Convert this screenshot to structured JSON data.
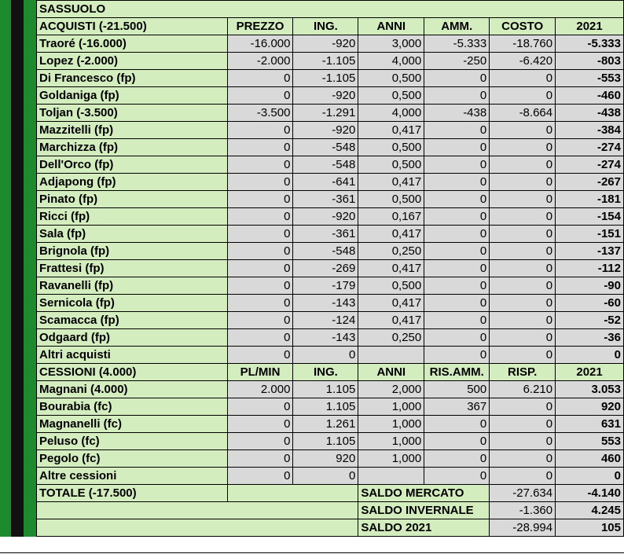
{
  "team": "SASSUOLO",
  "acquisti": {
    "title": "ACQUISTI (-21.500)",
    "headers": [
      "PREZZO",
      "ING.",
      "ANNI",
      "AMM.",
      "COSTO",
      "2021"
    ],
    "rows": [
      {
        "name": "Traoré (-16.000)",
        "v": [
          "-16.000",
          "-920",
          "3,000",
          "-5.333",
          "-18.760",
          "-5.333"
        ]
      },
      {
        "name": "Lopez (-2.000)",
        "v": [
          "-2.000",
          "-1.105",
          "4,000",
          "-250",
          "-6.420",
          "-803"
        ]
      },
      {
        "name": "Di Francesco (fp)",
        "v": [
          "0",
          "-1.105",
          "0,500",
          "0",
          "0",
          "-553"
        ]
      },
      {
        "name": "Goldaniga (fp)",
        "v": [
          "0",
          "-920",
          "0,500",
          "0",
          "0",
          "-460"
        ]
      },
      {
        "name": "Toljan (-3.500)",
        "v": [
          "-3.500",
          "-1.291",
          "4,000",
          "-438",
          "-8.664",
          "-438"
        ]
      },
      {
        "name": "Mazzitelli (fp)",
        "v": [
          "0",
          "-920",
          "0,417",
          "0",
          "0",
          "-384"
        ]
      },
      {
        "name": "Marchizza (fp)",
        "v": [
          "0",
          "-548",
          "0,500",
          "0",
          "0",
          "-274"
        ]
      },
      {
        "name": "Dell'Orco (fp)",
        "v": [
          "0",
          "-548",
          "0,500",
          "0",
          "0",
          "-274"
        ]
      },
      {
        "name": "Adjapong (fp)",
        "v": [
          "0",
          "-641",
          "0,417",
          "0",
          "0",
          "-267"
        ]
      },
      {
        "name": "Pinato (fp)",
        "v": [
          "0",
          "-361",
          "0,500",
          "0",
          "0",
          "-181"
        ]
      },
      {
        "name": "Ricci (fp)",
        "v": [
          "0",
          "-920",
          "0,167",
          "0",
          "0",
          "-154"
        ]
      },
      {
        "name": "Sala (fp)",
        "v": [
          "0",
          "-361",
          "0,417",
          "0",
          "0",
          "-151"
        ]
      },
      {
        "name": "Brignola (fp)",
        "v": [
          "0",
          "-548",
          "0,250",
          "0",
          "0",
          "-137"
        ]
      },
      {
        "name": "Frattesi (fp)",
        "v": [
          "0",
          "-269",
          "0,417",
          "0",
          "0",
          "-112"
        ]
      },
      {
        "name": "Ravanelli (fp)",
        "v": [
          "0",
          "-179",
          "0,500",
          "0",
          "0",
          "-90"
        ]
      },
      {
        "name": "Sernicola (fp)",
        "v": [
          "0",
          "-143",
          "0,417",
          "0",
          "0",
          "-60"
        ]
      },
      {
        "name": "Scamacca (fp)",
        "v": [
          "0",
          "-124",
          "0,417",
          "0",
          "0",
          "-52"
        ]
      },
      {
        "name": "Odgaard (fp)",
        "v": [
          "0",
          "-143",
          "0,250",
          "0",
          "0",
          "-36"
        ]
      },
      {
        "name": "Altri acquisti",
        "v": [
          "0",
          "0",
          "",
          "0",
          "0",
          "0"
        ]
      }
    ]
  },
  "cessioni": {
    "title": "CESSIONI (4.000)",
    "headers": [
      "PL/MIN",
      "ING.",
      "ANNI",
      "RIS.AMM.",
      "RISP.",
      "2021"
    ],
    "rows": [
      {
        "name": "Magnani (4.000)",
        "v": [
          "2.000",
          "1.105",
          "2,000",
          "500",
          "6.210",
          "3.053"
        ]
      },
      {
        "name": "Bourabia (fc)",
        "v": [
          "0",
          "1.105",
          "1,000",
          "367",
          "0",
          "920"
        ]
      },
      {
        "name": "Magnanelli (fc)",
        "v": [
          "0",
          "1.261",
          "1,000",
          "0",
          "0",
          "631"
        ]
      },
      {
        "name": "Peluso (fc)",
        "v": [
          "0",
          "1.105",
          "1,000",
          "0",
          "0",
          "553"
        ]
      },
      {
        "name": "Pegolo (fc)",
        "v": [
          "0",
          "920",
          "1,000",
          "0",
          "0",
          "460"
        ]
      },
      {
        "name": "Altre cessioni",
        "v": [
          "0",
          "0",
          "",
          "0",
          "0",
          "0"
        ]
      }
    ]
  },
  "totale": {
    "label": "TOTALE (-17.500)",
    "saldi": [
      {
        "label": "SALDO MERCATO",
        "a": "-27.634",
        "b": "-4.140"
      },
      {
        "label": "SALDO INVERNALE",
        "a": "-1.360",
        "b": "4.245"
      },
      {
        "label": "SALDO 2021",
        "a": "-28.994",
        "b": "105"
      }
    ]
  }
}
